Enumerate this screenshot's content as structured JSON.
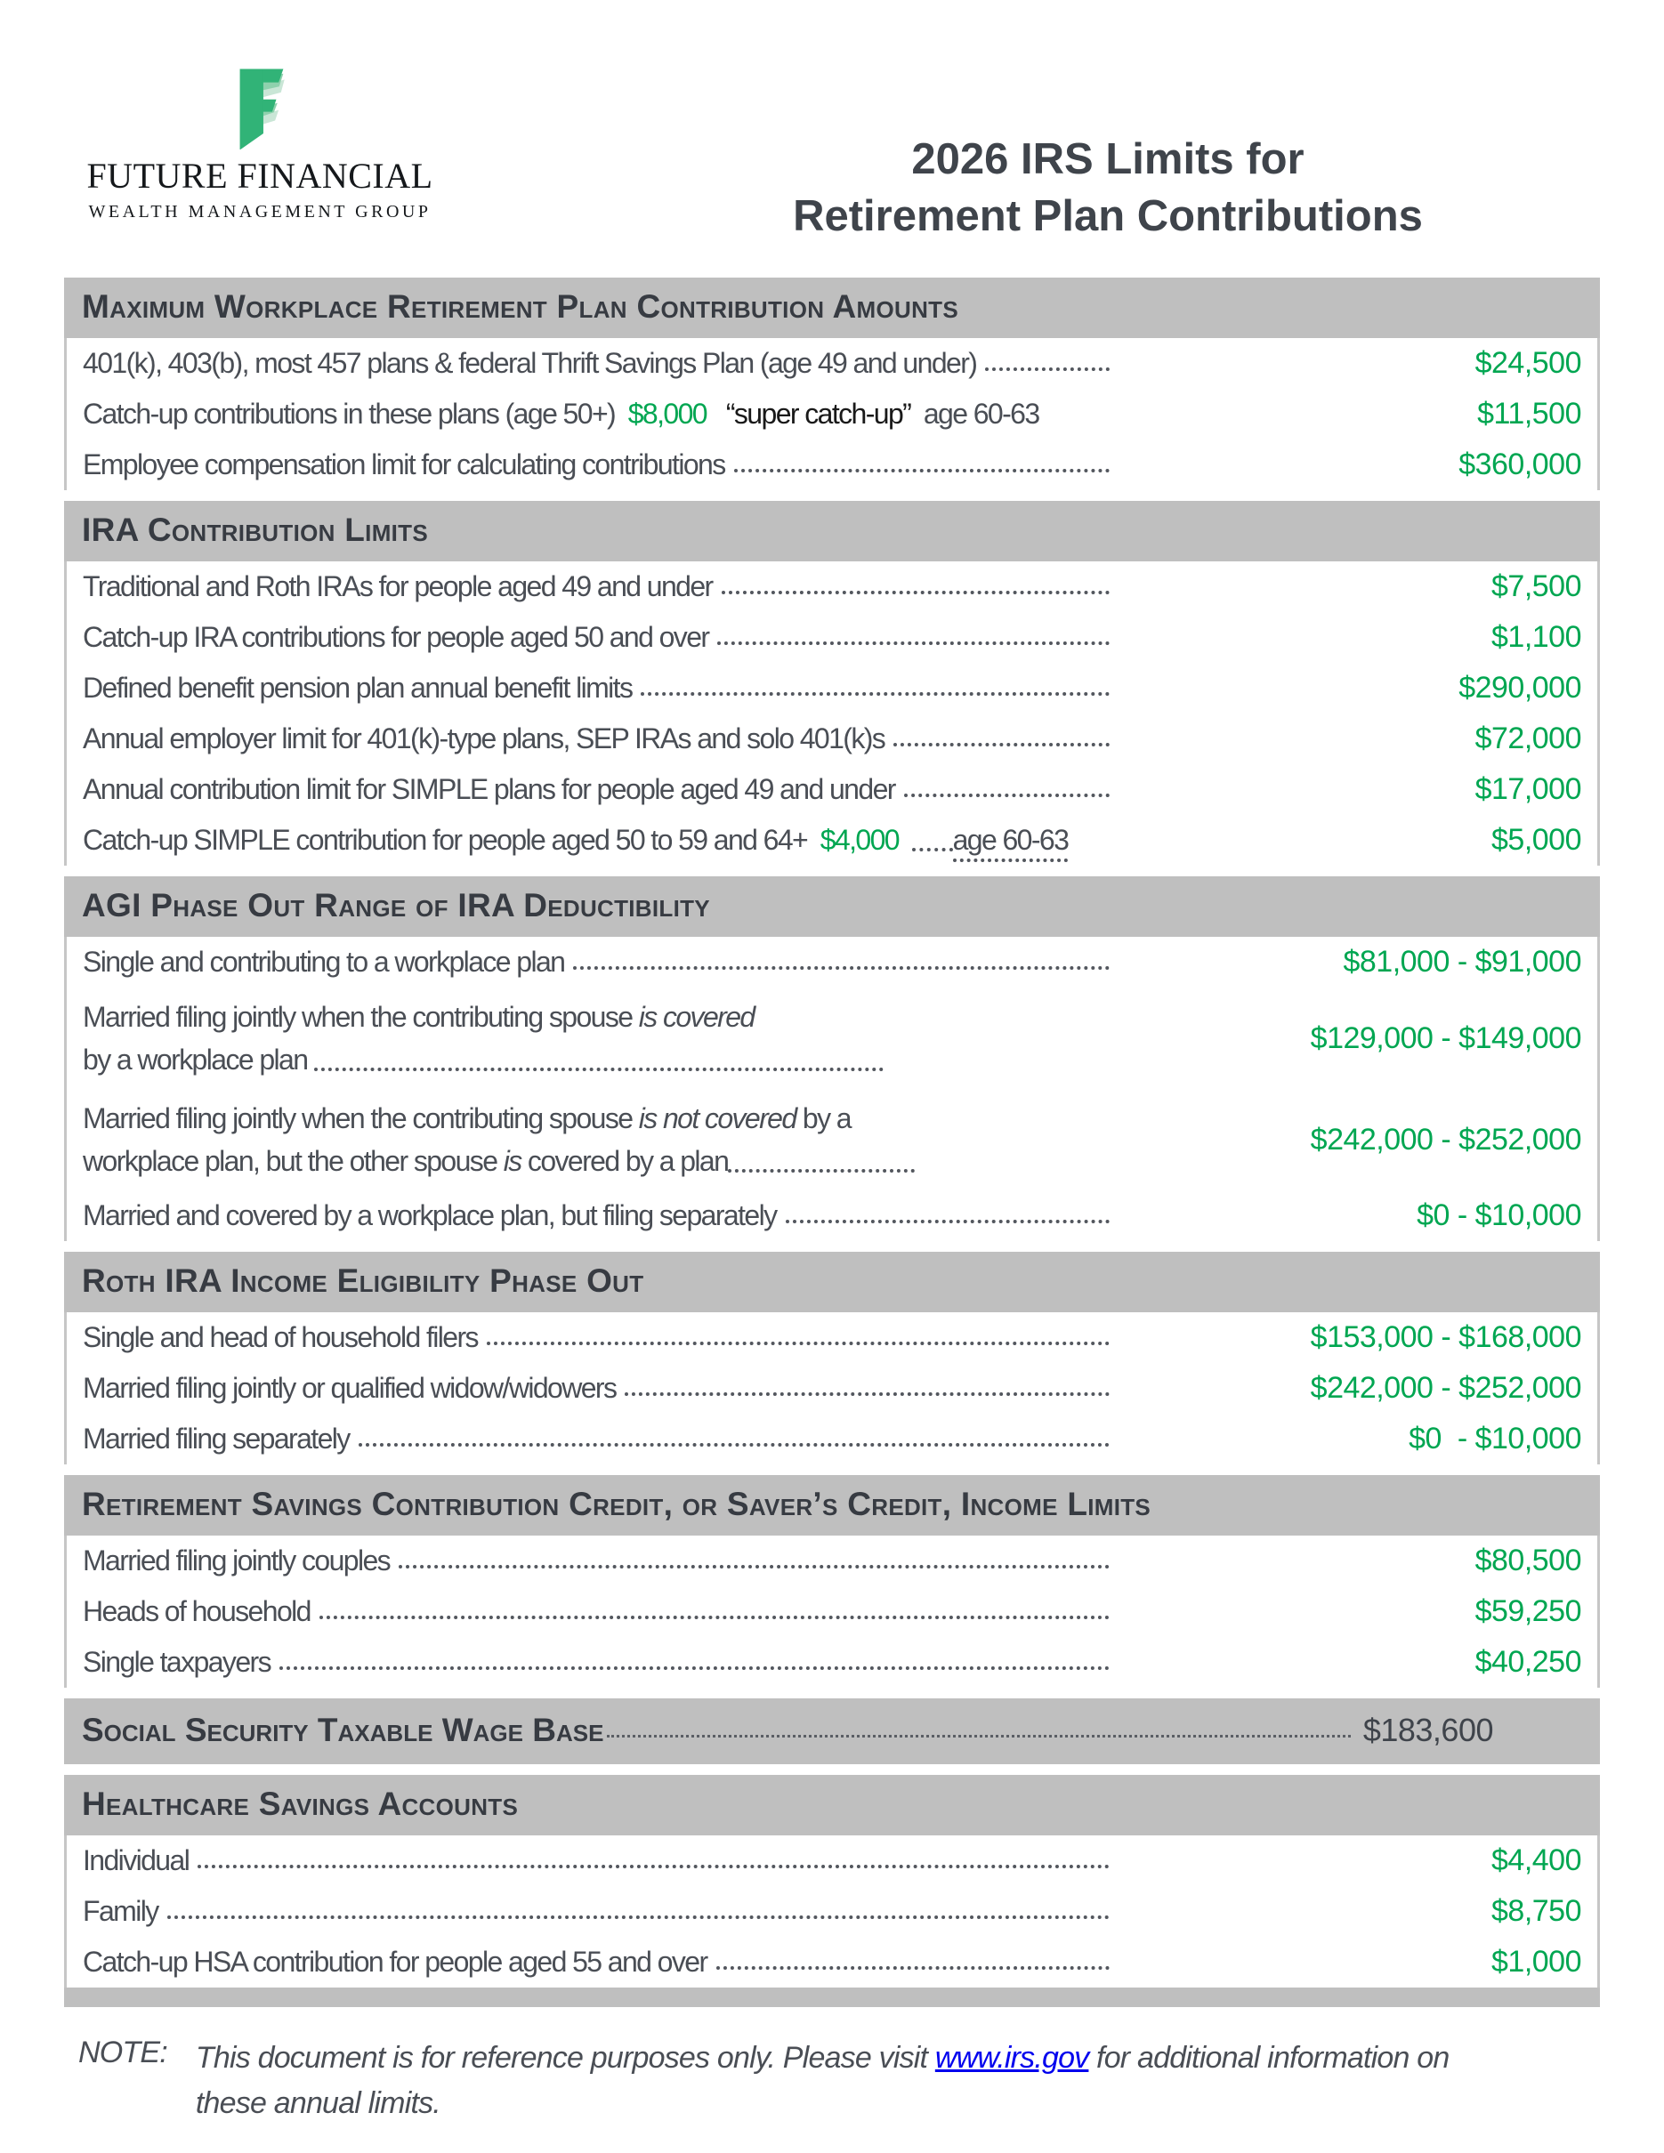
{
  "brand": {
    "wordmark": "FUTURE FINANCIAL",
    "tagline": "WEALTH MANAGEMENT GROUP",
    "logo_green": "#31b377"
  },
  "title": {
    "line1": "2026 IRS Limits for",
    "line2": "Retirement Plan Contributions"
  },
  "colors": {
    "accent_green": "#00a651",
    "bar_gray": "#bfbfbf",
    "text_dark": "#3f444b",
    "link_blue": "#0000ee"
  },
  "sections": [
    {
      "header": "Maximum Workplace Retirement Plan Contribution Amounts",
      "rows": [
        {
          "label": "401(k), 403(b), most 457 plans & federal Thrift Savings Plan (age 49 and under)",
          "value": "$24,500"
        },
        {
          "label_html": "Catch-up contributions in these plans (age 50+)&nbsp; <span class=\"g\">$8,000</span> &nbsp;&nbsp;<span class=\"dk\">“super catch-up”</span>&nbsp; age 60-63",
          "value": "$11,500"
        },
        {
          "label": "Employee compensation limit for calculating contributions",
          "value": "$360,000"
        }
      ]
    },
    {
      "header": "IRA Contribution Limits",
      "rows": [
        {
          "label": "Traditional and Roth IRAs for people aged 49 and under",
          "value": "$7,500"
        },
        {
          "label": "Catch-up IRA contributions for people aged 50 and over",
          "value": "$1,100"
        },
        {
          "label": "Defined benefit pension plan annual benefit limits",
          "value": "$290,000"
        },
        {
          "label": "Annual employer limit for 401(k)-type plans, SEP IRAs and solo 401(k)s",
          "value": "$72,000"
        },
        {
          "label": "Annual contribution limit for SIMPLE plans for people aged 49 and under",
          "value": "$17,000"
        },
        {
          "label_html": "Catch-up SIMPLE contribution for people aged 50 to 59 and 64+&nbsp; <span class=\"g\">$4,000</span>&nbsp; <span class=\"idots\" style=\"width:46px\"></span><span class=\"udot\">age 60-63</span>",
          "value": "$5,000"
        }
      ]
    },
    {
      "header": "AGI Phase Out Range of IRA Deductibility",
      "rows": [
        {
          "label": "Single and contributing to a workplace plan",
          "value": "$81,000 - $91,000"
        },
        {
          "label_html": "Married filing jointly when the contributing spouse <i>is covered</i><br>by a workplace plan&nbsp;<span class=\"idots\" style=\"width:640px\"></span>",
          "value": "$129,000 - $149,000",
          "two": true
        },
        {
          "label_html": "Married filing jointly when the contributing spouse <i>is not covered</i> by a<br>workplace plan, but the other spouse <i>is</i> covered by a plan<span class=\"idots\" style=\"width:210px\"></span>",
          "value": "$242,000 - $252,000",
          "two": true
        },
        {
          "label": "Married and covered by a workplace plan, but filing separately",
          "value": "$0 - $10,000"
        }
      ]
    },
    {
      "header": "Roth IRA Income Eligibility Phase Out",
      "rows": [
        {
          "label": "Single and head of household filers",
          "value": "$153,000 - $168,000"
        },
        {
          "label": "Married filing jointly or qualified widow/widowers",
          "value": "$242,000 - $252,000"
        },
        {
          "label": "Married filing separately",
          "value": "$0  - $10,000"
        }
      ]
    },
    {
      "header": "Retirement Savings Contribution Credit, or Saver’s Credit, Income Limits",
      "rows": [
        {
          "label": "Married filing jointly couples",
          "value": "$80,500"
        },
        {
          "label": "Heads of household",
          "value": "$59,250"
        },
        {
          "label": "Single taxpayers",
          "value": "$40,250"
        }
      ]
    },
    {
      "header": "Healthcare Savings Accounts",
      "rows": [
        {
          "label": "Individual",
          "value": "$4,400"
        },
        {
          "label": "Family",
          "value": "$8,750"
        },
        {
          "label": "Catch-up HSA contribution for people aged 55 and over",
          "value": "$1,000"
        }
      ]
    }
  ],
  "social_security": {
    "header": "Social Security Taxable Wage Base",
    "value": "$183,600"
  },
  "note": {
    "prefix": "NOTE:",
    "before_link": "This document is for reference purposes only. Please visit ",
    "link": "www.irs.gov",
    "after_link": " for additional information on these annual limits."
  }
}
